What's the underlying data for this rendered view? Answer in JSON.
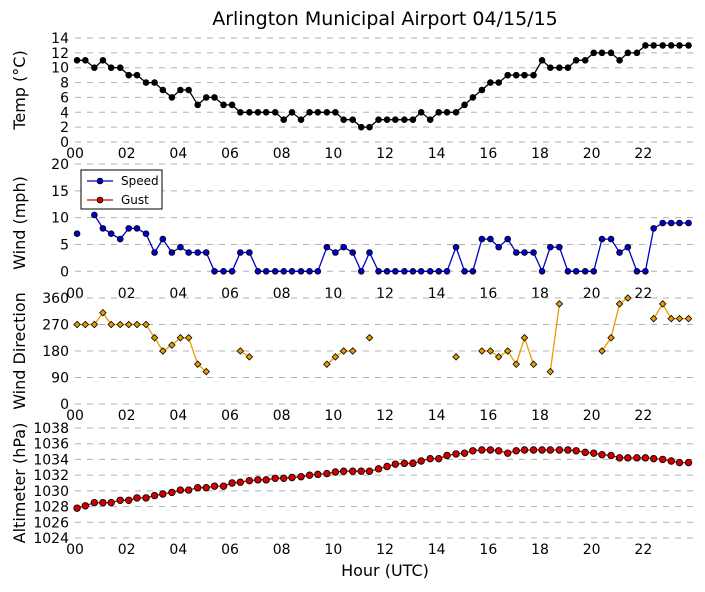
{
  "chart_data": [
    {
      "panel": "temperature",
      "type": "line",
      "title": "Arlington Municipal Airport 04/15/15",
      "ylabel": "Temp (°C)",
      "ylim": [
        0,
        14
      ],
      "yticks": [
        0,
        2,
        4,
        6,
        8,
        10,
        12,
        14
      ],
      "grid": true,
      "series": [
        {
          "name": "Temperature",
          "color": "#000000",
          "x": [
            0.08,
            0.4,
            0.75,
            1.08,
            1.4,
            1.75,
            2.08,
            2.4,
            2.75,
            3.08,
            3.4,
            3.75,
            4.08,
            4.4,
            4.75,
            5.08,
            5.4,
            5.75,
            6.08,
            6.4,
            6.75,
            7.08,
            7.4,
            7.75,
            8.08,
            8.4,
            8.75,
            9.08,
            9.4,
            9.75,
            10.08,
            10.4,
            10.75,
            11.08,
            11.4,
            11.75,
            12.08,
            12.4,
            12.75,
            13.08,
            13.4,
            13.75,
            14.08,
            14.4,
            14.75,
            15.08,
            15.4,
            15.75,
            16.08,
            16.4,
            16.75,
            17.08,
            17.4,
            17.75,
            18.08,
            18.4,
            18.75,
            19.08,
            19.4,
            19.75,
            20.08,
            20.4,
            20.75,
            21.08,
            21.4,
            21.75,
            22.08,
            22.4,
            22.75,
            23.08,
            23.4,
            23.75
          ],
          "values": [
            11,
            11,
            10,
            11,
            10,
            10,
            9,
            9,
            8,
            8,
            7,
            6,
            7,
            7,
            5,
            6,
            6,
            5,
            5,
            4,
            4,
            4,
            4,
            4,
            3,
            4,
            3,
            4,
            4,
            4,
            4,
            3,
            3,
            2,
            2,
            3,
            3,
            3,
            3,
            3,
            4,
            3,
            4,
            4,
            4,
            5,
            6,
            7,
            8,
            8,
            9,
            9,
            9,
            9,
            11,
            10,
            10,
            10,
            11,
            11,
            12,
            12,
            12,
            11,
            12,
            12,
            13,
            13,
            13,
            13,
            13,
            13
          ]
        }
      ]
    },
    {
      "panel": "wind",
      "type": "line",
      "ylabel": "Wind (mph)",
      "ylim": [
        -2,
        20
      ],
      "yticks": [
        0,
        5,
        10,
        15,
        20
      ],
      "grid": true,
      "legend": "top-left",
      "series": [
        {
          "name": "Speed",
          "color": "#0000cc",
          "x": [
            0.08,
            0.4,
            0.75,
            1.08,
            1.4,
            1.75,
            2.08,
            2.4,
            2.75,
            3.08,
            3.4,
            3.75,
            4.08,
            4.4,
            4.75,
            5.08,
            5.4,
            5.75,
            6.08,
            6.4,
            6.75,
            7.08,
            7.4,
            7.75,
            8.08,
            8.4,
            8.75,
            9.08,
            9.4,
            9.75,
            10.08,
            10.4,
            10.75,
            11.08,
            11.4,
            11.75,
            12.08,
            12.4,
            12.75,
            13.08,
            13.4,
            13.75,
            14.08,
            14.4,
            14.75,
            15.08,
            15.4,
            15.75,
            16.08,
            16.4,
            16.75,
            17.08,
            17.4,
            17.75,
            18.08,
            18.4,
            18.75,
            19.08,
            19.4,
            19.75,
            20.08,
            20.4,
            20.75,
            21.08,
            21.4,
            21.75,
            22.08,
            22.4,
            22.75,
            23.08,
            23.4,
            23.75
          ],
          "values": [
            7,
            null,
            10.5,
            8,
            7,
            6,
            8,
            8,
            7,
            3.5,
            6,
            3.5,
            4.5,
            3.5,
            3.5,
            3.5,
            0,
            0,
            0,
            3.5,
            3.5,
            0,
            0,
            0,
            0,
            0,
            0,
            0,
            0,
            4.5,
            3.5,
            4.5,
            3.5,
            0,
            3.5,
            0,
            0,
            0,
            0,
            0,
            0,
            0,
            0,
            0,
            4.5,
            0,
            0,
            6,
            6,
            4.5,
            6,
            3.5,
            3.5,
            3.5,
            0,
            4.5,
            4.5,
            0,
            0,
            0,
            0,
            6,
            6,
            3.5,
            4.5,
            0,
            0,
            8,
            9,
            9,
            9,
            9
          ]
        },
        {
          "name": "Gust",
          "color": "#cc0000",
          "x": [],
          "values": []
        }
      ]
    },
    {
      "panel": "wind_direction",
      "type": "line",
      "ylabel": "Wind Direction",
      "ylim": [
        0,
        360
      ],
      "yticks": [
        0,
        90,
        180,
        270,
        360
      ],
      "grid": true,
      "series": [
        {
          "name": "Direction",
          "color": "#e69d00",
          "x": [
            0.08,
            0.4,
            0.75,
            1.08,
            1.4,
            1.75,
            2.08,
            2.4,
            2.75,
            3.08,
            3.4,
            3.75,
            4.08,
            4.4,
            4.75,
            5.08,
            5.4,
            5.75,
            6.08,
            6.4,
            6.75,
            7.08,
            7.4,
            7.75,
            8.08,
            8.4,
            8.75,
            9.08,
            9.4,
            9.75,
            10.08,
            10.4,
            10.75,
            11.08,
            11.4,
            11.75,
            12.08,
            12.4,
            12.75,
            13.08,
            13.4,
            13.75,
            14.08,
            14.4,
            14.75,
            15.08,
            15.4,
            15.75,
            16.08,
            16.4,
            16.75,
            17.08,
            17.4,
            17.75,
            18.08,
            18.4,
            18.75,
            19.08,
            19.4,
            19.75,
            20.08,
            20.4,
            20.75,
            21.08,
            21.4,
            21.75,
            22.08,
            22.4,
            22.75,
            23.08,
            23.4,
            23.75
          ],
          "values": [
            270,
            270,
            270,
            310,
            270,
            270,
            270,
            270,
            270,
            225,
            180,
            200,
            225,
            225,
            135,
            110,
            null,
            null,
            null,
            180,
            160,
            null,
            null,
            null,
            null,
            null,
            null,
            null,
            null,
            135,
            160,
            180,
            180,
            null,
            225,
            null,
            null,
            null,
            null,
            null,
            null,
            null,
            null,
            null,
            160,
            null,
            null,
            180,
            180,
            160,
            180,
            135,
            225,
            135,
            null,
            110,
            340,
            null,
            null,
            null,
            null,
            180,
            225,
            340,
            360,
            null,
            null,
            290,
            340,
            290,
            290,
            290
          ]
        }
      ]
    },
    {
      "panel": "altimeter",
      "type": "line",
      "ylabel": "Altimeter (hPa)",
      "xlabel": "Hour (UTC)",
      "ylim": [
        1024,
        1038
      ],
      "yticks": [
        1024,
        1026,
        1028,
        1030,
        1032,
        1034,
        1036,
        1038
      ],
      "xlim": [
        0,
        24
      ],
      "xticks": [
        "00",
        "02",
        "04",
        "06",
        "08",
        "10",
        "12",
        "14",
        "16",
        "18",
        "20",
        "22"
      ],
      "grid": true,
      "series": [
        {
          "name": "Altimeter",
          "color": "#cc0000",
          "x": [
            0.08,
            0.4,
            0.75,
            1.08,
            1.4,
            1.75,
            2.08,
            2.4,
            2.75,
            3.08,
            3.4,
            3.75,
            4.08,
            4.4,
            4.75,
            5.08,
            5.4,
            5.75,
            6.08,
            6.4,
            6.75,
            7.08,
            7.4,
            7.75,
            8.08,
            8.4,
            8.75,
            9.08,
            9.4,
            9.75,
            10.08,
            10.4,
            10.75,
            11.08,
            11.4,
            11.75,
            12.08,
            12.4,
            12.75,
            13.08,
            13.4,
            13.75,
            14.08,
            14.4,
            14.75,
            15.08,
            15.4,
            15.75,
            16.08,
            16.4,
            16.75,
            17.08,
            17.4,
            17.75,
            18.08,
            18.4,
            18.75,
            19.08,
            19.4,
            19.75,
            20.08,
            20.4,
            20.75,
            21.08,
            21.4,
            21.75,
            22.08,
            22.4,
            22.75,
            23.08,
            23.4,
            23.75
          ],
          "values": [
            1027.8,
            1028.1,
            1028.5,
            1028.5,
            1028.5,
            1028.8,
            1028.8,
            1029.1,
            1029.1,
            1029.4,
            1029.6,
            1029.8,
            1030.1,
            1030.1,
            1030.4,
            1030.4,
            1030.6,
            1030.6,
            1031.0,
            1031.1,
            1031.3,
            1031.4,
            1031.4,
            1031.6,
            1031.6,
            1031.7,
            1031.8,
            1032.0,
            1032.1,
            1032.2,
            1032.4,
            1032.5,
            1032.5,
            1032.5,
            1032.5,
            1032.8,
            1033.1,
            1033.4,
            1033.5,
            1033.5,
            1033.8,
            1034.1,
            1034.1,
            1034.5,
            1034.7,
            1034.8,
            1035.1,
            1035.2,
            1035.2,
            1035.1,
            1034.8,
            1035.1,
            1035.2,
            1035.2,
            1035.2,
            1035.2,
            1035.2,
            1035.2,
            1035.1,
            1034.9,
            1034.8,
            1034.6,
            1034.5,
            1034.2,
            1034.2,
            1034.2,
            1034.2,
            1034.1,
            1034.0,
            1033.8,
            1033.6,
            1033.6
          ]
        }
      ]
    }
  ]
}
